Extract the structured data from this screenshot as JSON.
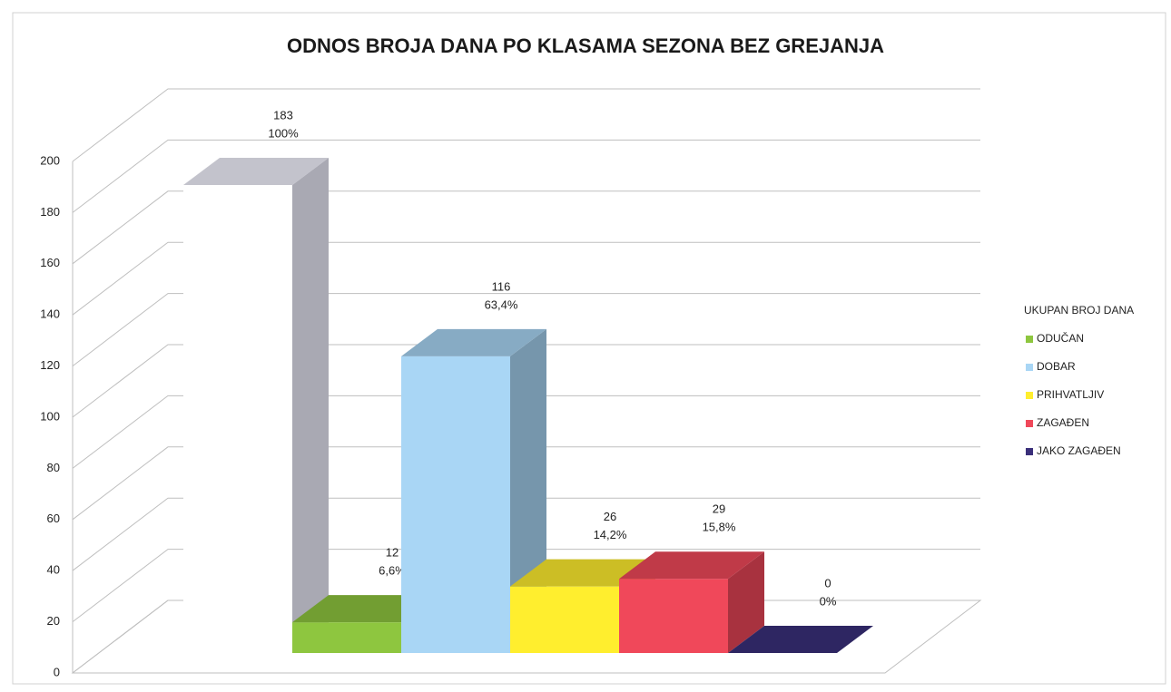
{
  "chart_data": {
    "type": "bar3d",
    "title": "ODNOS BROJA DANA PO KLASAMA SEZONA BEZ GREJANJA",
    "ylim": [
      0,
      200
    ],
    "yticks": [
      0,
      20,
      40,
      60,
      80,
      100,
      120,
      140,
      160,
      180,
      200
    ],
    "grid": true,
    "legend": "right",
    "series": [
      {
        "name": "UKUPAN BROJ DANA",
        "color": "#ffffff",
        "values": [
          183
        ],
        "percent": {
          "value": 100,
          "label": "100%"
        }
      },
      {
        "name": "ODUČAN",
        "color": "#8ec63f",
        "values": [
          12
        ],
        "percent": {
          "value": 6.6,
          "label": "6,6%"
        }
      },
      {
        "name": "DOBAR",
        "color": "#a9d6f5",
        "values": [
          116
        ],
        "percent": {
          "value": 63.4,
          "label": "63,4%"
        }
      },
      {
        "name": "PRIHVATLJIV",
        "color": "#ffee2e",
        "values": [
          26
        ],
        "percent": {
          "value": 14.2,
          "label": "14,2%"
        }
      },
      {
        "name": "ZAGAĐEN",
        "color": "#f0485a",
        "values": [
          29
        ],
        "percent": {
          "value": 15.8,
          "label": "15,8%"
        }
      },
      {
        "name": "JAKO ZAGAĐEN",
        "color": "#3a2f7a",
        "values": [
          0
        ],
        "percent": {
          "value": 0,
          "label": "0%"
        }
      }
    ]
  }
}
